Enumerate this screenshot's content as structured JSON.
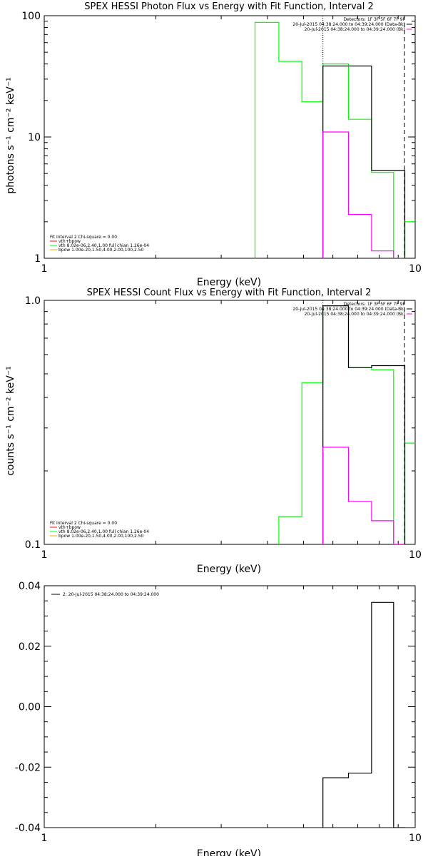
{
  "colors": {
    "background": "#ffffff",
    "axes": "#000000",
    "total_fit": "#000000",
    "vth_component": "#00ff00",
    "bpow_component": "#ff00ff",
    "legend_red": "#ff0000",
    "legend_orange": "#ffa500"
  },
  "chart_data": [
    {
      "type": "line",
      "title": "SPEX HESSI Photon Flux vs Energy with Fit Function, Interval 2",
      "xlabel": "Energy (keV)",
      "ylabel": "photons s⁻¹ cm⁻² keV⁻¹",
      "xlog": true,
      "ylog": true,
      "xlim": [
        1,
        10
      ],
      "ylim": [
        1,
        100
      ],
      "xticks": [
        {
          "v": 1,
          "label": "1"
        },
        {
          "v": 10,
          "label": "10"
        }
      ],
      "yticks": [
        {
          "v": 1,
          "label": "1"
        },
        {
          "v": 10,
          "label": "10"
        },
        {
          "v": 100,
          "label": "100"
        }
      ],
      "legend_top_right": [
        "Detectors: 1F 3F 5F 6F 7F 9F",
        "20-Jul-2015 04:38:24.000 to 04:39:24.000 (Data-Bk)",
        "20-Jul-2015 04:38:24.000 to 04:39:24.000 (Bk)"
      ],
      "legend_bottom_left": [
        "Fit Interval  2   Chi-square = 0.00",
        "vth+bpow",
        "vth 8.02e-06,2.40,1.00   full chian 1.26e-04",
        "bpow 1.00e-20,1.50,4.00,2.00,100,2.50"
      ],
      "vlines": [
        {
          "x": 5.64,
          "style": "dotted"
        },
        {
          "x": 9.36,
          "style": "dashed"
        }
      ],
      "series": [
        {
          "name": "vth",
          "color": "#00ff00",
          "edges": [
            3.7,
            4.29,
            4.95,
            5.64,
            6.61,
            7.63,
            8.75,
            9.38,
            10.05
          ],
          "values": [
            88,
            42,
            19.5,
            40,
            14,
            5.1,
            1.0,
            2.0
          ]
        },
        {
          "name": "vth+bpow",
          "color": "#000000",
          "edges": [
            5.64,
            6.61,
            7.63,
            8.75,
            9.38
          ],
          "values": [
            38.5,
            38.5,
            5.3,
            5.3
          ]
        },
        {
          "name": "bpow",
          "color": "#ff00ff",
          "edges": [
            5.64,
            6.61,
            7.63,
            8.75,
            9.38
          ],
          "values": [
            11,
            2.3,
            1.15,
            1.0
          ]
        }
      ]
    },
    {
      "type": "line",
      "title": "SPEX HESSI Count Flux vs Energy with Fit Function, Interval 2",
      "xlabel": "Energy (keV)",
      "ylabel": "counts s⁻¹ cm⁻² keV⁻¹",
      "xlog": true,
      "ylog": true,
      "xlim": [
        1,
        10
      ],
      "ylim": [
        0.1,
        1.0
      ],
      "xticks": [
        {
          "v": 1,
          "label": "1"
        },
        {
          "v": 10,
          "label": "10"
        }
      ],
      "yticks": [
        {
          "v": 0.1,
          "label": "0.1"
        },
        {
          "v": 1.0,
          "label": "1.0"
        }
      ],
      "legend_top_right": [
        "Detectors: 1F 3F 5F 6F 7F 9F",
        "20-Jul-2015 04:38:24.000 to 04:39:24.000 (Data-Bk)",
        "20-Jul-2015 04:38:24.000 to 04:39:24.000 (Bk)"
      ],
      "legend_bottom_left": [
        "Fit Interval  2   Chi-square = 0.00",
        "vth+bpow",
        "vth 8.02e-06,2.40,1.00   full chian 1.26e-04",
        "bpow 1.00e-20,1.50,4.00,2.00,100,2.50"
      ],
      "vlines": [
        {
          "x": 5.64,
          "style": "dotted"
        },
        {
          "x": 9.36,
          "style": "dashed"
        }
      ],
      "series": [
        {
          "name": "vth",
          "color": "#00ff00",
          "edges": [
            4.29,
            4.95,
            5.64,
            6.61,
            7.63,
            8.75,
            9.38,
            10.05
          ],
          "values": [
            0.13,
            0.46,
            0.95,
            0.53,
            0.52,
            0.1,
            0.26
          ]
        },
        {
          "name": "vth+bpow",
          "color": "#000000",
          "edges": [
            5.64,
            6.61,
            7.63,
            8.75,
            9.38
          ],
          "values": [
            0.95,
            0.53,
            0.54,
            0.54
          ]
        },
        {
          "name": "bpow",
          "color": "#ff00ff",
          "edges": [
            5.64,
            6.61,
            7.63,
            8.75,
            9.38
          ],
          "values": [
            0.25,
            0.15,
            0.125,
            0.1
          ]
        }
      ]
    },
    {
      "type": "line",
      "title": "",
      "xlabel": "Energy (keV)",
      "ylabel": "",
      "xlog": true,
      "ylog": false,
      "xlim": [
        1,
        10
      ],
      "ylim": [
        -0.04,
        0.04
      ],
      "xticks": [
        {
          "v": 1,
          "label": "1"
        },
        {
          "v": 10,
          "label": "10"
        }
      ],
      "yticks": [
        {
          "v": -0.04,
          "label": "-0.04"
        },
        {
          "v": -0.02,
          "label": "-0.02"
        },
        {
          "v": 0.0,
          "label": "0.00"
        },
        {
          "v": 0.02,
          "label": "0.02"
        },
        {
          "v": 0.04,
          "label": "0.04"
        }
      ],
      "legend_top_left": [
        "2: 20-Jul-2015 04:38:24.000 to 04:39:24.000"
      ],
      "vlines": [],
      "series": [
        {
          "name": "2: 20-Jul-2015 04:38:24.000 to 04:39:24.000",
          "color": "#000000",
          "edges": [
            5.64,
            6.61,
            7.63,
            8.75,
            9.38
          ],
          "values": [
            -0.0235,
            -0.022,
            0.0345,
            -0.04
          ]
        }
      ]
    }
  ]
}
